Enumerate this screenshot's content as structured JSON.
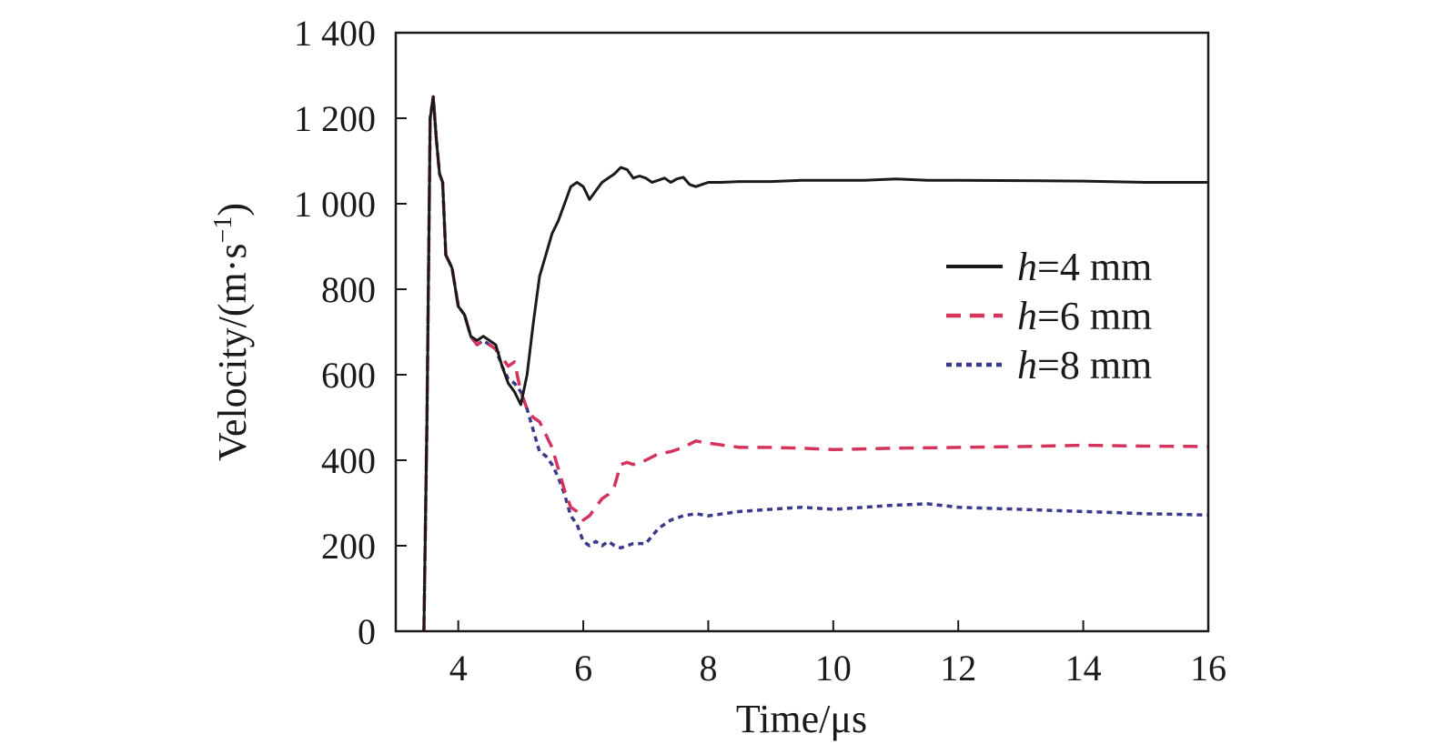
{
  "chart_data": {
    "type": "line",
    "title": "",
    "xlabel": "Time/μs",
    "ylabel": "Velocity/(m·s",
    "ylabel_unit_exp": "−1",
    "ylabel_close": ")",
    "xlim": [
      3,
      16
    ],
    "ylim": [
      0,
      1400
    ],
    "xticks": [
      4,
      6,
      8,
      10,
      12,
      14,
      16
    ],
    "xtick_labels": [
      "4",
      "6",
      "8",
      "10",
      "12",
      "14",
      "16"
    ],
    "yticks": [
      0,
      200,
      400,
      600,
      800,
      1000,
      1200,
      1400
    ],
    "ytick_labels": [
      "0",
      "200",
      "400",
      "600",
      "800",
      "1 000",
      "1 200",
      "1 400"
    ],
    "legend_position": "right",
    "grid": false,
    "series": [
      {
        "name": "h=4 mm",
        "legend_var": "h",
        "legend_rest": "=4 mm",
        "color": "#1a1a1a",
        "style": "solid",
        "x": [
          3.45,
          3.5,
          3.55,
          3.6,
          3.65,
          3.7,
          3.75,
          3.8,
          3.9,
          4.0,
          4.1,
          4.2,
          4.3,
          4.4,
          4.5,
          4.6,
          4.7,
          4.8,
          4.9,
          5.0,
          5.1,
          5.2,
          5.3,
          5.4,
          5.5,
          5.6,
          5.7,
          5.8,
          5.9,
          6.0,
          6.1,
          6.2,
          6.3,
          6.4,
          6.5,
          6.6,
          6.7,
          6.8,
          6.9,
          7.0,
          7.1,
          7.2,
          7.3,
          7.4,
          7.5,
          7.6,
          7.7,
          7.8,
          7.9,
          8.0,
          8.2,
          8.5,
          9.0,
          9.5,
          10.0,
          10.5,
          11.0,
          11.5,
          12.0,
          13.0,
          14.0,
          15.0,
          16.0
        ],
        "y": [
          0,
          500,
          1200,
          1250,
          1150,
          1070,
          1050,
          880,
          850,
          760,
          740,
          690,
          680,
          690,
          680,
          670,
          620,
          580,
          560,
          530,
          600,
          720,
          830,
          880,
          930,
          960,
          1000,
          1040,
          1050,
          1040,
          1010,
          1030,
          1050,
          1060,
          1070,
          1085,
          1080,
          1060,
          1065,
          1060,
          1050,
          1055,
          1060,
          1050,
          1058,
          1062,
          1045,
          1040,
          1045,
          1050,
          1050,
          1052,
          1052,
          1055,
          1055,
          1055,
          1058,
          1055,
          1055,
          1054,
          1053,
          1050,
          1050
        ]
      },
      {
        "name": "h=6 mm",
        "legend_var": "h",
        "legend_rest": "=6 mm",
        "color": "#d4335c",
        "style": "dash",
        "x": [
          3.45,
          3.5,
          3.55,
          3.6,
          3.65,
          3.7,
          3.75,
          3.8,
          3.9,
          4.0,
          4.1,
          4.2,
          4.3,
          4.4,
          4.5,
          4.6,
          4.7,
          4.8,
          4.9,
          5.0,
          5.1,
          5.2,
          5.3,
          5.4,
          5.5,
          5.6,
          5.7,
          5.8,
          5.9,
          6.0,
          6.1,
          6.2,
          6.3,
          6.4,
          6.5,
          6.6,
          6.7,
          6.8,
          7.0,
          7.2,
          7.4,
          7.6,
          7.8,
          8.0,
          8.5,
          9.0,
          9.5,
          10.0,
          11.0,
          12.0,
          13.0,
          14.0,
          15.0,
          16.0
        ],
        "y": [
          0,
          500,
          1200,
          1250,
          1150,
          1070,
          1050,
          880,
          850,
          760,
          740,
          690,
          670,
          680,
          670,
          660,
          640,
          620,
          630,
          560,
          520,
          500,
          490,
          460,
          430,
          380,
          330,
          290,
          280,
          260,
          270,
          290,
          310,
          320,
          340,
          390,
          395,
          390,
          400,
          415,
          420,
          430,
          445,
          440,
          430,
          430,
          428,
          425,
          428,
          430,
          432,
          435,
          433,
          432
        ]
      },
      {
        "name": "h=8 mm",
        "legend_var": "h",
        "legend_rest": "=8 mm",
        "color": "#3a3a8c",
        "style": "dot",
        "x": [
          3.45,
          3.5,
          3.55,
          3.6,
          3.65,
          3.7,
          3.75,
          3.8,
          3.9,
          4.0,
          4.1,
          4.2,
          4.3,
          4.4,
          4.5,
          4.6,
          4.7,
          4.8,
          4.9,
          5.0,
          5.1,
          5.2,
          5.3,
          5.4,
          5.5,
          5.6,
          5.7,
          5.8,
          5.9,
          6.0,
          6.1,
          6.2,
          6.3,
          6.4,
          6.5,
          6.6,
          6.7,
          6.8,
          7.0,
          7.2,
          7.4,
          7.6,
          7.8,
          8.0,
          8.5,
          9.0,
          9.5,
          10.0,
          10.5,
          11.0,
          11.5,
          12.0,
          13.0,
          14.0,
          15.0,
          16.0
        ],
        "y": [
          0,
          500,
          1200,
          1250,
          1150,
          1070,
          1050,
          880,
          850,
          760,
          740,
          690,
          670,
          680,
          670,
          660,
          620,
          590,
          580,
          560,
          520,
          470,
          420,
          410,
          390,
          360,
          320,
          270,
          250,
          210,
          200,
          210,
          200,
          210,
          200,
          195,
          200,
          205,
          205,
          240,
          260,
          270,
          275,
          270,
          280,
          285,
          290,
          285,
          290,
          295,
          298,
          290,
          285,
          280,
          275,
          272
        ]
      }
    ]
  }
}
